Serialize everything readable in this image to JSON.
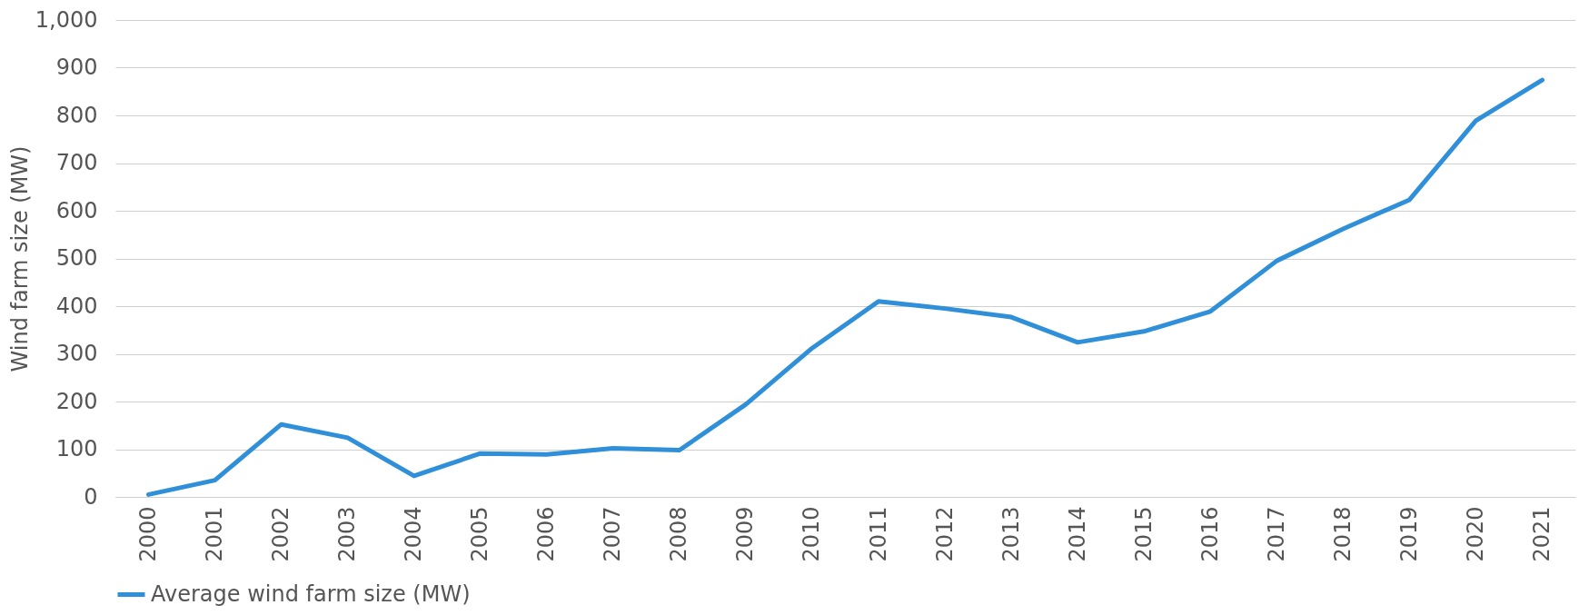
{
  "chart_data": {
    "type": "line",
    "ylabel": "Wind farm size (MW)",
    "categories": [
      "2000",
      "2001",
      "2002",
      "2003",
      "2004",
      "2005",
      "2006",
      "2007",
      "2008",
      "2009",
      "2010",
      "2011",
      "2012",
      "2013",
      "2014",
      "2015",
      "2016",
      "2017",
      "2018",
      "2019",
      "2020",
      "2021"
    ],
    "series": [
      {
        "name": "Average wind farm size (MW)",
        "color": "#2f8fd8",
        "values": [
          5,
          35,
          152,
          124,
          44,
          91,
          89,
          102,
          98,
          194,
          312,
          410,
          395,
          377,
          324,
          347,
          389,
          495,
          562,
          623,
          789,
          874
        ]
      }
    ],
    "ylim": [
      0,
      1000
    ],
    "yticks": [
      0,
      100,
      200,
      300,
      400,
      500,
      600,
      700,
      800,
      900,
      {
        "value": 1000,
        "label": "1,000"
      }
    ],
    "grid": "y",
    "legend": "bottom",
    "marker": "none",
    "line_style": "solid"
  }
}
